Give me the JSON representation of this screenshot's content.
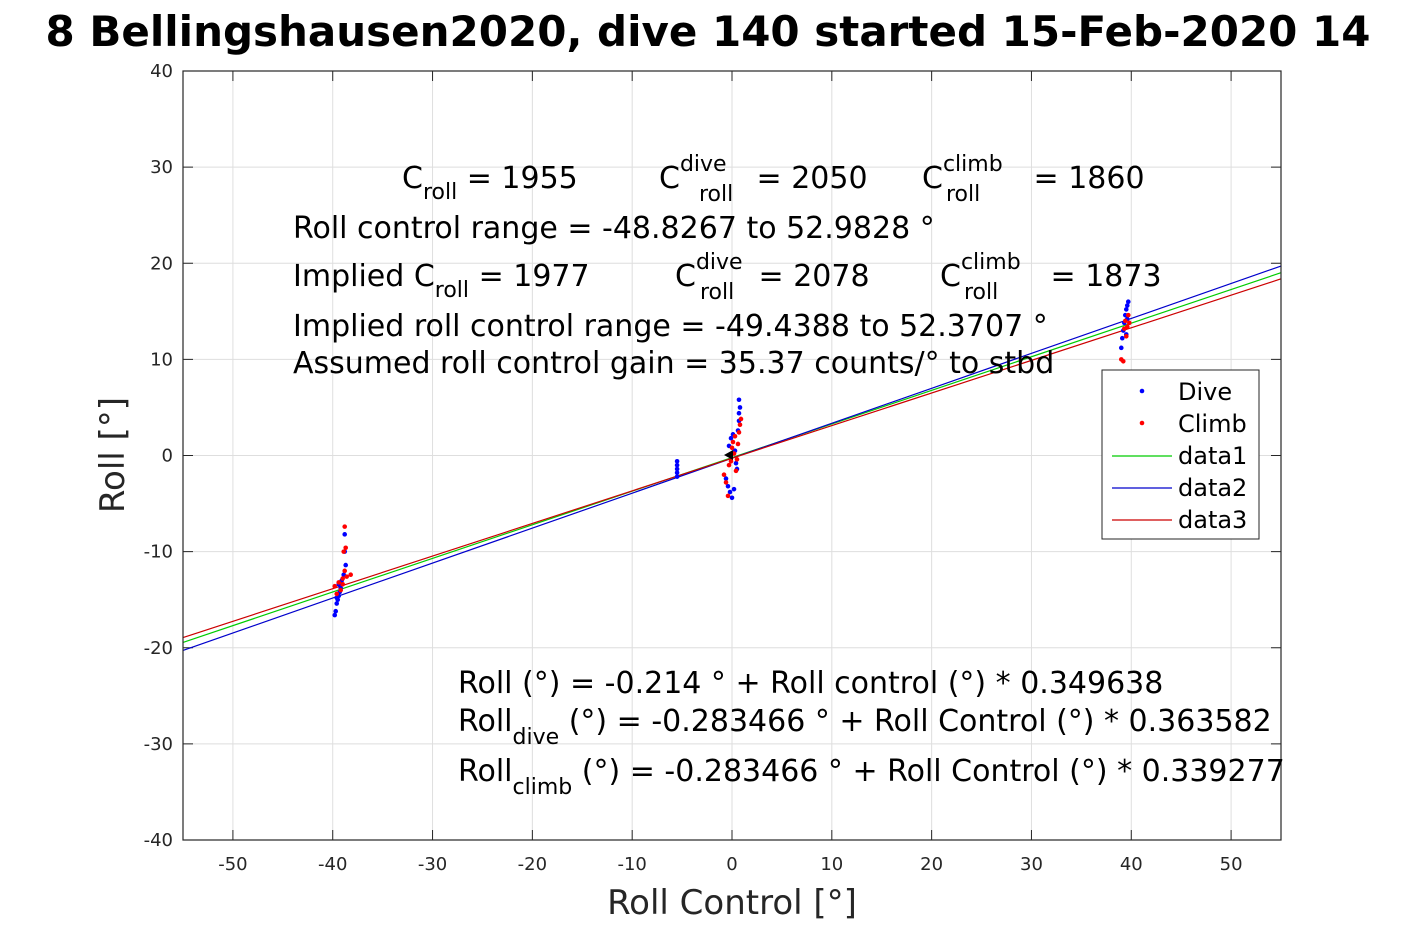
{
  "chart_data": {
    "type": "scatter",
    "title": "8 Bellingshausen2020, dive 140 started 15-Feb-2020 14",
    "xlabel": "Roll Control [°]",
    "ylabel": "Roll [°]",
    "xlim": [
      -55,
      55
    ],
    "ylim": [
      -40,
      40
    ],
    "xticks": [
      -50,
      -40,
      -30,
      -20,
      -10,
      0,
      10,
      20,
      30,
      40,
      50
    ],
    "yticks": [
      -40,
      -30,
      -20,
      -10,
      0,
      10,
      20,
      30,
      40
    ],
    "grid": true,
    "legend_position": "right",
    "colors": {
      "Dive": "#0000ff",
      "Climb": "#ff0000",
      "data1": "#00cc00",
      "data2": "#0000cc",
      "data3": "#cc0000"
    },
    "series": [
      {
        "name": "Dive",
        "kind": "points",
        "points": [
          [
            -39.8,
            -16.6
          ],
          [
            -39.7,
            -16.2
          ],
          [
            -39.6,
            -15.4
          ],
          [
            -39.5,
            -15.0
          ],
          [
            -39.4,
            -14.6
          ],
          [
            -39.3,
            -14.2
          ],
          [
            -39.2,
            -13.8
          ],
          [
            -39.4,
            -13.4
          ],
          [
            -39.6,
            -14.8
          ],
          [
            -38.9,
            -12.4
          ],
          [
            -38.7,
            -11.4
          ],
          [
            -38.8,
            -10.0
          ],
          [
            -38.8,
            -8.2
          ],
          [
            -39.1,
            -13.0
          ],
          [
            -5.5,
            -0.6
          ],
          [
            -5.5,
            -1.0
          ],
          [
            -5.5,
            -1.4
          ],
          [
            -5.5,
            -1.8
          ],
          [
            -5.5,
            -2.2
          ],
          [
            -0.6,
            -2.4
          ],
          [
            -0.4,
            -3.2
          ],
          [
            -0.2,
            -3.8
          ],
          [
            0.0,
            -4.4
          ],
          [
            0.2,
            -3.5
          ],
          [
            -0.3,
            1.0
          ],
          [
            -0.1,
            1.8
          ],
          [
            0.1,
            2.2
          ],
          [
            0.3,
            0.5
          ],
          [
            0.4,
            -0.8
          ],
          [
            0.6,
            2.6
          ],
          [
            0.7,
            3.6
          ],
          [
            0.7,
            4.4
          ],
          [
            0.8,
            5.0
          ],
          [
            0.7,
            5.8
          ],
          [
            0.5,
            -1.4
          ],
          [
            39.0,
            11.2
          ],
          [
            39.1,
            12.2
          ],
          [
            39.2,
            13.0
          ],
          [
            39.3,
            13.8
          ],
          [
            39.4,
            14.6
          ],
          [
            39.5,
            15.2
          ],
          [
            39.6,
            15.6
          ],
          [
            39.7,
            16.0
          ],
          [
            39.6,
            14.2
          ],
          [
            39.5,
            12.6
          ]
        ]
      },
      {
        "name": "Climb",
        "kind": "points",
        "points": [
          [
            -39.8,
            -13.6
          ],
          [
            -39.6,
            -14.4
          ],
          [
            -39.4,
            -13.2
          ],
          [
            -39.2,
            -14.0
          ],
          [
            -39.0,
            -13.4
          ],
          [
            -38.8,
            -12.0
          ],
          [
            -38.6,
            -12.6
          ],
          [
            -38.2,
            -12.4
          ],
          [
            -38.7,
            -9.6
          ],
          [
            -38.9,
            -10.0
          ],
          [
            -38.8,
            -7.4
          ],
          [
            -39.0,
            -12.8
          ],
          [
            -0.8,
            -2.0
          ],
          [
            -0.6,
            -2.8
          ],
          [
            -0.4,
            -4.2
          ],
          [
            -0.3,
            -1.0
          ],
          [
            -0.1,
            -0.6
          ],
          [
            0.0,
            0.8
          ],
          [
            0.1,
            1.4
          ],
          [
            0.2,
            0.2
          ],
          [
            0.3,
            2.0
          ],
          [
            0.4,
            -1.6
          ],
          [
            0.6,
            1.2
          ],
          [
            0.7,
            2.4
          ],
          [
            0.8,
            3.2
          ],
          [
            0.9,
            3.8
          ],
          [
            0.5,
            -0.4
          ],
          [
            39.0,
            10.0
          ],
          [
            39.2,
            9.8
          ],
          [
            39.3,
            13.2
          ],
          [
            39.4,
            14.0
          ],
          [
            39.6,
            13.4
          ],
          [
            39.7,
            14.6
          ],
          [
            39.8,
            13.8
          ],
          [
            39.5,
            12.4
          ]
        ]
      },
      {
        "name": "data1",
        "kind": "line",
        "x": [
          -55,
          55
        ],
        "y": [
          -19.446,
          19.016
        ]
      },
      {
        "name": "data2",
        "kind": "line",
        "x": [
          -55,
          55
        ],
        "y": [
          -20.281,
          19.713
        ]
      },
      {
        "name": "data3",
        "kind": "line",
        "x": [
          -55,
          55
        ],
        "y": [
          -18.944,
          18.376
        ]
      }
    ],
    "legend": [
      "Dive",
      "Climb",
      "data1",
      "data2",
      "data3"
    ],
    "annotations": {
      "c_roll": "C",
      "c_roll_sub": "roll",
      "c_roll_val": " = 1955",
      "c_dive": "C",
      "c_dive_sup": "dive",
      "c_dive_sub": "roll",
      "c_dive_val": " = 2050",
      "c_climb": "C",
      "c_climb_sup": "climb",
      "c_climb_sub": "roll",
      "c_climb_val": " = 1860",
      "range": "Roll control range = -48.8267 to 52.9828 °",
      "implied_c": "Implied C",
      "implied_c_sub": "roll",
      "implied_c_val": " = 1977",
      "implied_dive": "C",
      "implied_dive_sup": "dive",
      "implied_dive_sub": "roll",
      "implied_dive_val": " = 2078",
      "implied_climb": "C",
      "implied_climb_sup": "climb",
      "implied_climb_sub": "roll",
      "implied_climb_val": " = 1873",
      "implied_range": "Implied roll control range = -49.4388 to 52.3707 °",
      "gain": "Assumed roll control gain = 35.37 counts/° to stbd",
      "fit1": "Roll (°) = -0.214 ° + Roll control (°) * 0.349638",
      "fit2_a": "Roll",
      "fit2_sub": "dive",
      "fit2_b": " (°) = -0.283466 ° + Roll Control (°) * 0.363582",
      "fit3_a": "Roll",
      "fit3_sub": "climb",
      "fit3_b": " (°) = -0.283466 ° + Roll Control (°) * 0.339277"
    }
  }
}
